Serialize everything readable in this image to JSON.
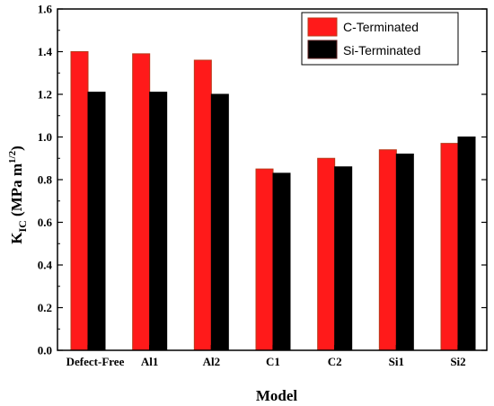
{
  "chart_data": {
    "type": "bar",
    "categories": [
      "Defect-Free",
      "Al1",
      "Al2",
      "C1",
      "C2",
      "Si1",
      "Si2"
    ],
    "series": [
      {
        "name": "C-Terminated",
        "values": [
          1.4,
          1.39,
          1.36,
          0.85,
          0.9,
          0.94,
          0.97
        ],
        "color": "#ff1a1a",
        "edge": "#b83a1a"
      },
      {
        "name": "Si-Terminated",
        "values": [
          1.21,
          1.21,
          1.2,
          0.83,
          0.86,
          0.92,
          1.0
        ],
        "color": "#000000",
        "edge": "#000000"
      }
    ],
    "xlabel": "Model",
    "ylabel_main": "K",
    "ylabel_sub": "IC",
    "ylabel_unit_pre": " (MPa m",
    "ylabel_unit_sup": "1/2",
    "ylabel_unit_post": ")",
    "ylim": [
      0.0,
      1.6
    ],
    "yticks": [
      "0.0",
      "0.2",
      "0.4",
      "0.6",
      "0.8",
      "1.0",
      "1.2",
      "1.4",
      "1.6"
    ],
    "legend_position": "top-right",
    "grid": false
  }
}
